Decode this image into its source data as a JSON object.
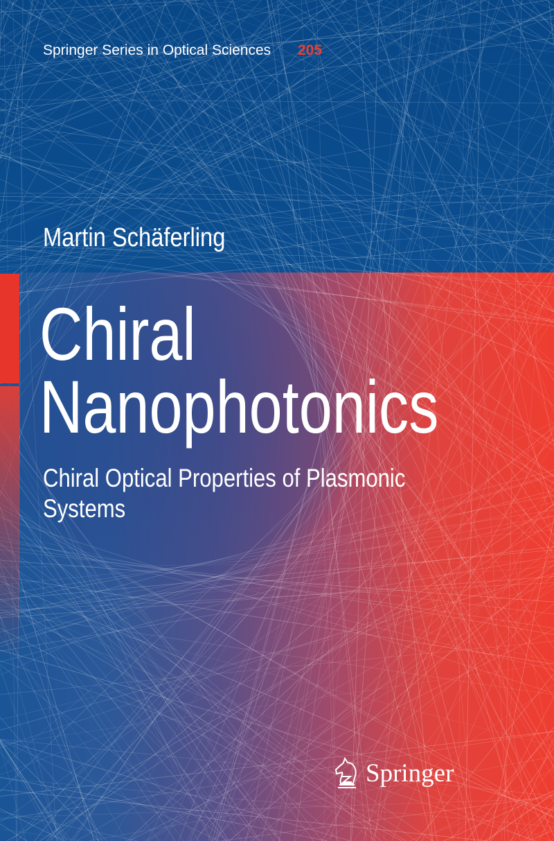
{
  "series": {
    "name": "Springer Series in Optical Sciences",
    "number": "205"
  },
  "author": "Martin Schäferling",
  "title": {
    "line1": "Chiral",
    "line2": "Nanophotonics"
  },
  "subtitle": "Chiral Optical Properties of Plasmonic Systems",
  "publisher": {
    "name": "Springer",
    "logo_icon": "springer-knight-icon"
  },
  "colors": {
    "blue": "#0b4a8b",
    "red": "#e8352c",
    "series_number": "#e8402f"
  }
}
